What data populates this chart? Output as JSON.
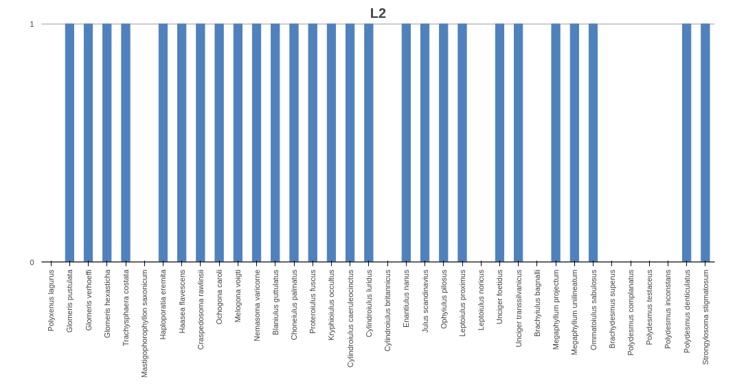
{
  "chart_data": {
    "type": "bar",
    "title": "L2",
    "categories": [
      "Polyxenus lagurus",
      "Glomeris pustulata",
      "Glomeris verhoeffi",
      "Glomeris hexasticha",
      "Trachysphaera costata",
      "Mastigophorophyllon saxonicum",
      "Haploporatia eremita",
      "Haasea flavescens",
      "Craspedosoma rawlinsii",
      "Ochogona caroli",
      "Melogona voigti",
      "Nemasoma varicorne",
      "Blaniulus guttulatus",
      "Choneiulus palmatus",
      "Proteroiulus fuscus",
      "Kryphioiulus occultus",
      "Cylindroiulus caeruleocinctus",
      "Cylindroiulus luridus",
      "Cylindroiulus britannicus",
      "Enantiulus nanus",
      "Julus scandinavius",
      "Ophyiulus pilosus",
      "Leptoiulus proximus",
      "Leptoiulus noricus",
      "Unciger foetidus",
      "Unciger transsilvanicus",
      "Brachyiulus bagnalli",
      "Megaphyllum projectum",
      "Megaphyllum unilineatum",
      "Ommatoiulus sabulosus",
      "Brachydesmus superus",
      "Polydesmus complanatus",
      "Polydesmus testaceus",
      "Polydesmus inconstans",
      "Polydesmus denticulatus",
      "Strongylosoma stigmatosum"
    ],
    "values": [
      0,
      1,
      1,
      1,
      1,
      0,
      1,
      1,
      1,
      1,
      1,
      1,
      1,
      1,
      1,
      1,
      1,
      1,
      0,
      1,
      1,
      1,
      1,
      0,
      1,
      1,
      0,
      1,
      1,
      1,
      0,
      0,
      0,
      0,
      1,
      1
    ],
    "color": "#4f81bd",
    "ylim": [
      0,
      1
    ],
    "yticks": [
      0,
      1
    ],
    "grid": "y"
  }
}
